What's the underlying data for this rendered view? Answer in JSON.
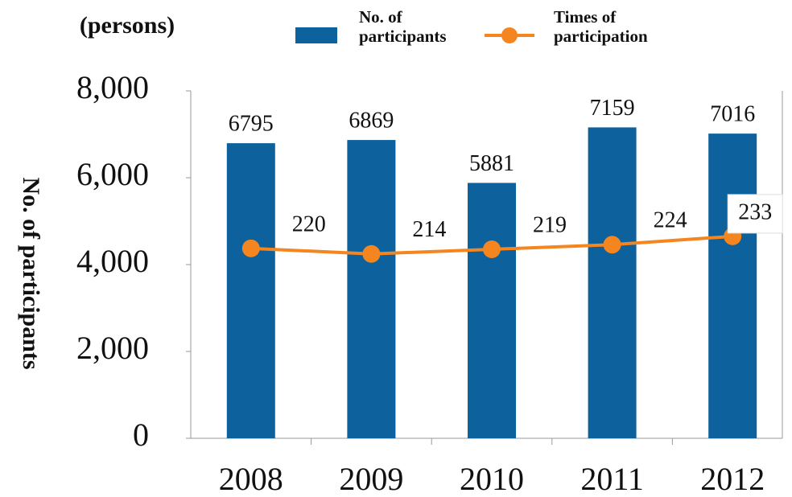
{
  "chart_data": {
    "type": "bar_line",
    "unit_label": "(persons)",
    "y_label": "No. of participants",
    "categories": [
      "2008",
      "2009",
      "2010",
      "2011",
      "2012"
    ],
    "series": [
      {
        "name": "No. of participants",
        "color": "#0d619c",
        "type": "bar",
        "axis": "y",
        "values": [
          6795,
          6869,
          5881,
          7159,
          7016
        ]
      },
      {
        "name": "Times of participation",
        "color": "#f5851f",
        "type": "line",
        "axis": "y2",
        "values": [
          220,
          214,
          219,
          224,
          233
        ]
      }
    ],
    "ylim": [
      0,
      8000
    ],
    "yticks": [
      0,
      {
        "value": 2000,
        "label": "2,000"
      },
      {
        "value": 4000,
        "label": "4,000"
      },
      {
        "value": 6000,
        "label": "6,000"
      },
      {
        "value": 8000,
        "label": "8,000"
      }
    ],
    "y2lim": [
      15,
      390
    ]
  }
}
